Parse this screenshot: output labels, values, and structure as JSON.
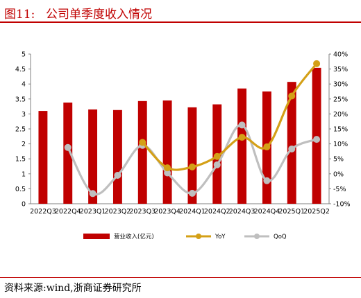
{
  "header": {
    "figure_number": "图11:",
    "title": "公司单季度收入情况"
  },
  "footer": {
    "source": "资料来源:wind,浙商证券研究所"
  },
  "colors": {
    "accent": "#c00000",
    "bar": "#c00000",
    "yoy": "#d4a017",
    "qoq": "#bfbfbf"
  },
  "chart_data": {
    "type": "bar",
    "categories": [
      "2022Q3",
      "2022Q4",
      "2023Q1",
      "2023Q2",
      "2023Q3",
      "2023Q4",
      "2024Q1",
      "2024Q2",
      "2024Q3",
      "2024Q4",
      "2025Q1",
      "2025Q2"
    ],
    "series": [
      {
        "name": "营业收入(亿元)",
        "type": "bar",
        "axis": "left",
        "values": [
          3.1,
          3.38,
          3.15,
          3.13,
          3.43,
          3.45,
          3.22,
          3.32,
          3.85,
          3.75,
          4.07,
          4.54
        ]
      },
      {
        "name": "YoY",
        "type": "line",
        "axis": "right",
        "values": [
          null,
          null,
          null,
          null,
          10.5,
          2.0,
          2.3,
          5.8,
          12.2,
          9.0,
          26.0,
          36.8
        ]
      },
      {
        "name": "QoQ",
        "type": "line",
        "axis": "right",
        "values": [
          null,
          8.8,
          -6.6,
          -0.5,
          9.5,
          0.3,
          -6.5,
          3.0,
          16.3,
          -2.3,
          8.3,
          11.5
        ]
      }
    ],
    "y_left": {
      "ticks": [
        "0",
        "0.5",
        "1",
        "1.5",
        "2",
        "2.5",
        "3",
        "3.5",
        "4",
        "4.5",
        "5"
      ],
      "ylim": [
        0,
        5
      ]
    },
    "y_right": {
      "ticks": [
        "-10%",
        "-5%",
        "0%",
        "5%",
        "10%",
        "15%",
        "20%",
        "25%",
        "30%",
        "35%",
        "40%"
      ],
      "ylim": [
        -10,
        40
      ]
    },
    "grid": false,
    "legend": "bottom"
  }
}
